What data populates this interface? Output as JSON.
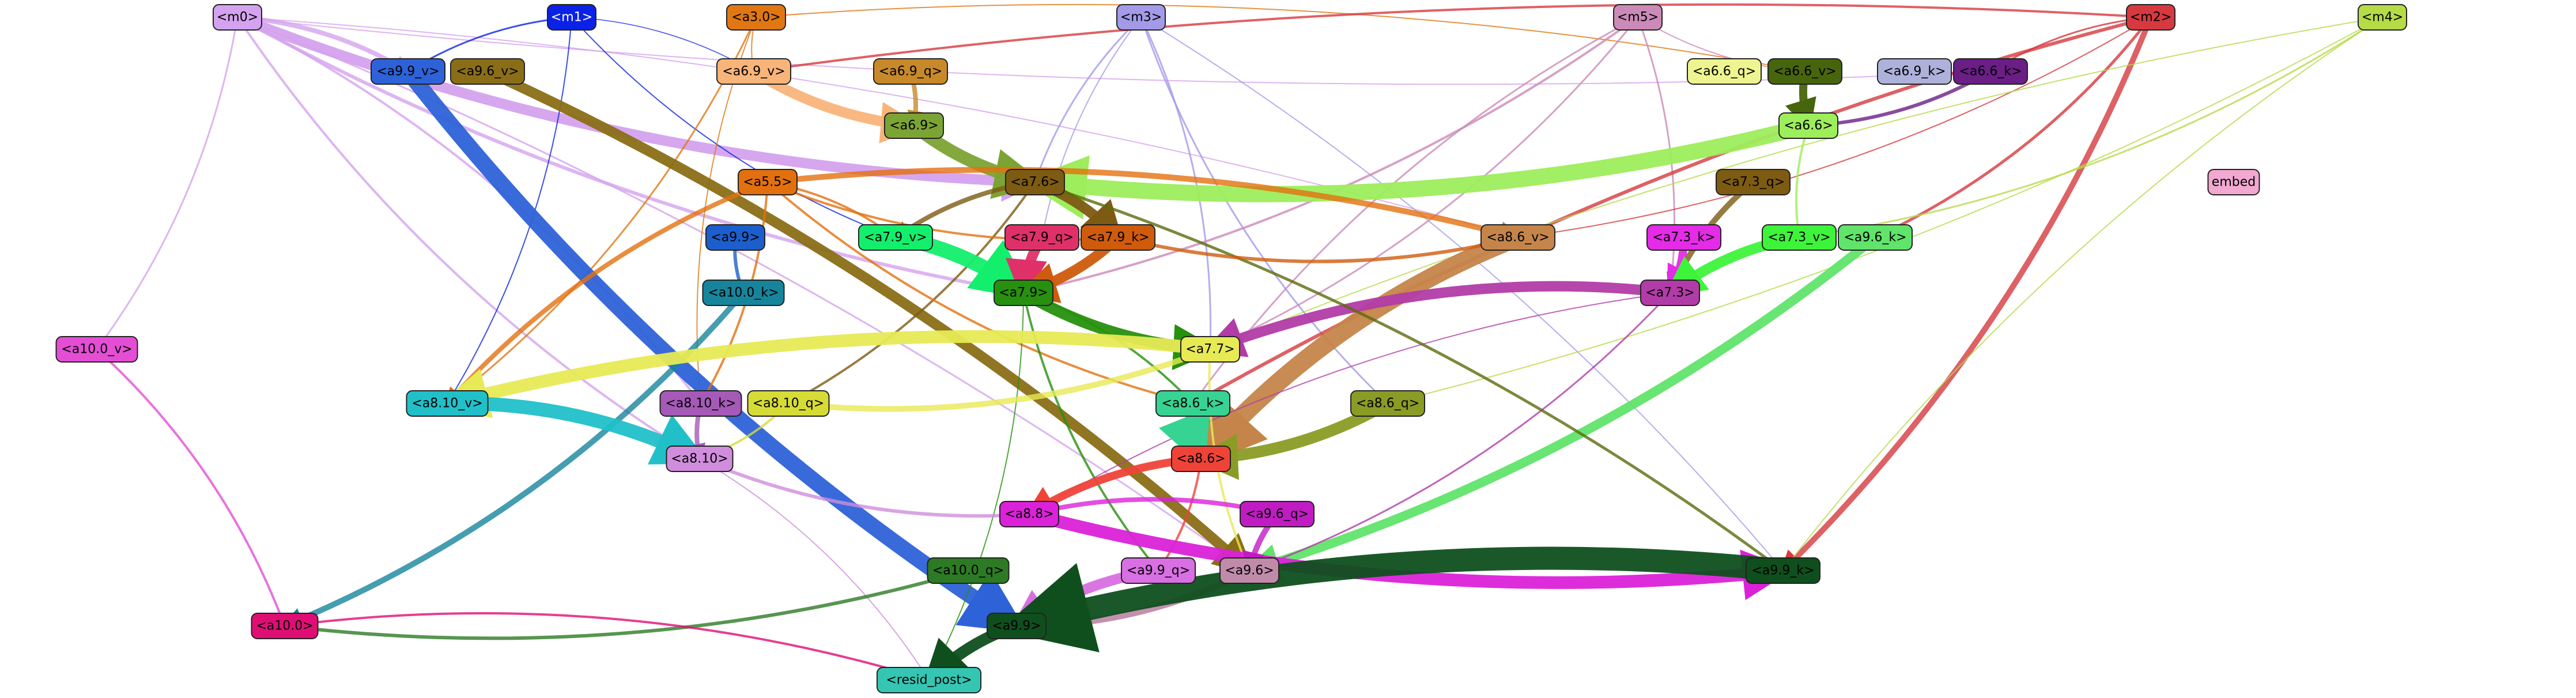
{
  "nodes": [
    {
      "id": "m0",
      "label": "<m0>",
      "fill": "#d4a2ee",
      "text": "#000000"
    },
    {
      "id": "m1",
      "label": "<m1>",
      "fill": "#0b22e6",
      "text": "#ffffff"
    },
    {
      "id": "a3.0",
      "label": "<a3.0>",
      "fill": "#e07712",
      "text": "#000000"
    },
    {
      "id": "m3",
      "label": "<m3>",
      "fill": "#a39ae8",
      "text": "#000000"
    },
    {
      "id": "m5",
      "label": "<m5>",
      "fill": "#cc8ab8",
      "text": "#000000"
    },
    {
      "id": "m2",
      "label": "<m2>",
      "fill": "#d6393f",
      "text": "#000000"
    },
    {
      "id": "m4",
      "label": "<m4>",
      "fill": "#b5db47",
      "text": "#000000"
    },
    {
      "id": "a9.9_v",
      "label": "<a9.9_v>",
      "fill": "#2e62d8",
      "text": "#000000"
    },
    {
      "id": "a9.6_v",
      "label": "<a9.6_v>",
      "fill": "#8a6e17",
      "text": "#000000"
    },
    {
      "id": "a6.9_v",
      "label": "<a6.9_v>",
      "fill": "#f9b47a",
      "text": "#000000"
    },
    {
      "id": "a6.9_q",
      "label": "<a6.9_q>",
      "fill": "#c8892a",
      "text": "#000000"
    },
    {
      "id": "a6.6_q",
      "label": "<a6.6_q>",
      "fill": "#eef590",
      "text": "#000000"
    },
    {
      "id": "a6.6_v",
      "label": "<a6.6_v>",
      "fill": "#47650c",
      "text": "#000000"
    },
    {
      "id": "a6.9_k",
      "label": "<a6.9_k>",
      "fill": "#aeb2da",
      "text": "#000000"
    },
    {
      "id": "a6.6_k",
      "label": "<a6.6_k>",
      "fill": "#6a1e86",
      "text": "#000000"
    },
    {
      "id": "a6.9",
      "label": "<a6.9>",
      "fill": "#7ca434",
      "text": "#000000"
    },
    {
      "id": "a6.6",
      "label": "<a6.6>",
      "fill": "#9ded5c",
      "text": "#000000"
    },
    {
      "id": "a7.6",
      "label": "<a7.6>",
      "fill": "#7d5b12",
      "text": "#000000"
    },
    {
      "id": "a7.3_q",
      "label": "<a7.3_q>",
      "fill": "#7d5b12",
      "text": "#000000"
    },
    {
      "id": "embed",
      "label": "embed",
      "fill": "#f1a8d1",
      "text": "#000000"
    },
    {
      "id": "a5.5",
      "label": "<a5.5>",
      "fill": "#e3700f",
      "text": "#000000"
    },
    {
      "id": "a7.9_v",
      "label": "<a7.9_v>",
      "fill": "#13ef6c",
      "text": "#000000"
    },
    {
      "id": "a7.9_q",
      "label": "<a7.9_q>",
      "fill": "#e0306a",
      "text": "#000000"
    },
    {
      "id": "a7.9_k",
      "label": "<a7.9_k>",
      "fill": "#cf5b0c",
      "text": "#000000"
    },
    {
      "id": "a8.6_v",
      "label": "<a8.6_v>",
      "fill": "#c5854a",
      "text": "#000000"
    },
    {
      "id": "a7.3_k",
      "label": "<a7.3_k>",
      "fill": "#e42be6",
      "text": "#000000"
    },
    {
      "id": "a7.3_v",
      "label": "<a7.3_v>",
      "fill": "#3ef43b",
      "text": "#000000"
    },
    {
      "id": "a9.6_k",
      "label": "<a9.6_k>",
      "fill": "#60e46a",
      "text": "#000000"
    },
    {
      "id": "a9.9",
      "label": "<a9.9>",
      "fill": "#1c5fcc",
      "text": "#000000"
    },
    {
      "id": "a10.0_k",
      "label": "<a10.0_k>",
      "fill": "#16859c",
      "text": "#000000"
    },
    {
      "id": "a7.9",
      "label": "<a7.9>",
      "fill": "#27900e",
      "text": "#000000"
    },
    {
      "id": "a7.3",
      "label": "<a7.3>",
      "fill": "#b23ca7",
      "text": "#000000"
    },
    {
      "id": "a10.0_v",
      "label": "<a10.0_v>",
      "fill": "#e44ed5",
      "text": "#000000"
    },
    {
      "id": "a7.7",
      "label": "<a7.7>",
      "fill": "#e7ea55",
      "text": "#000000"
    },
    {
      "id": "a8.10_v",
      "label": "<a8.10_v>",
      "fill": "#21c0c9",
      "text": "#000000"
    },
    {
      "id": "a8.10_k",
      "label": "<a8.10_k>",
      "fill": "#a65ab8",
      "text": "#000000"
    },
    {
      "id": "a8.10_q",
      "label": "<a8.10_q>",
      "fill": "#d7db36",
      "text": "#000000"
    },
    {
      "id": "a8.6_k",
      "label": "<a8.6_k>",
      "fill": "#37d393",
      "text": "#000000"
    },
    {
      "id": "a8.6_q",
      "label": "<a8.6_q>",
      "fill": "#8a9c25",
      "text": "#000000"
    },
    {
      "id": "a8.6",
      "label": "<a8.6>",
      "fill": "#ef4338",
      "text": "#000000"
    },
    {
      "id": "a8.10",
      "label": "<a8.10>",
      "fill": "#d08ddc",
      "text": "#000000"
    },
    {
      "id": "a8.8",
      "label": "<a8.8>",
      "fill": "#db22d8",
      "text": "#000000"
    },
    {
      "id": "a9.6_q",
      "label": "<a9.6_q>",
      "fill": "#c11cc4",
      "text": "#000000"
    },
    {
      "id": "a10.0_q",
      "label": "<a10.0_q>",
      "fill": "#2d7a24",
      "text": "#000000"
    },
    {
      "id": "a9.9_q",
      "label": "<a9.9_q>",
      "fill": "#d86fe2",
      "text": "#000000"
    },
    {
      "id": "a9.6",
      "label": "<a9.6>",
      "fill": "#c08ba9",
      "text": "#000000"
    },
    {
      "id": "a9.9_k",
      "label": "<a9.9_k>",
      "fill": "#0f4f1d",
      "text": "#000000"
    },
    {
      "id": "a10.0",
      "label": "<a10.0>",
      "fill": "#df0e75",
      "text": "#000000"
    },
    {
      "id": "a9.9b",
      "label": "<a9.9>",
      "fill": "#0f4f1d",
      "text": "#000000"
    },
    {
      "id": "resid_post",
      "label": "<resid_post>",
      "fill": "#35c6b3",
      "text": "#000000"
    }
  ],
  "edges": [
    {
      "from": "m0",
      "to": "a9.9_v",
      "color": "#d4a2ee",
      "weight": 8
    },
    {
      "from": "m0",
      "to": "a7.6",
      "color": "#d4a2ee",
      "weight": 18
    },
    {
      "from": "m0",
      "to": "a8.10_k",
      "color": "#d4a2ee",
      "weight": 4
    },
    {
      "from": "m0",
      "to": "a8.10",
      "color": "#d4a2ee",
      "weight": 4
    },
    {
      "from": "m0",
      "to": "a10.0_v",
      "color": "#d4a2ee",
      "weight": 3
    },
    {
      "from": "m0",
      "to": "a7.9",
      "color": "#d4a2ee",
      "weight": 6
    },
    {
      "from": "m0",
      "to": "a9.6",
      "color": "#d4a2ee",
      "weight": 3
    },
    {
      "from": "m0",
      "to": "a6.6_k",
      "color": "#d4a2ee",
      "weight": 2
    },
    {
      "from": "m0",
      "to": "a8.6_v",
      "color": "#d4a2ee",
      "weight": 2
    },
    {
      "from": "m1",
      "to": "a9.9_v",
      "color": "#0b22e6",
      "weight": 3
    },
    {
      "from": "m1",
      "to": "a8.10_v",
      "color": "#0b22e6",
      "weight": 2
    },
    {
      "from": "m1",
      "to": "a7.9_v",
      "color": "#0b22e6",
      "weight": 2
    },
    {
      "from": "m1",
      "to": "a6.9_v",
      "color": "#0b22e6",
      "weight": 1
    },
    {
      "from": "a3.0",
      "to": "a6.9_v",
      "color": "#e07712",
      "weight": 2
    },
    {
      "from": "a3.0",
      "to": "a8.10_v",
      "color": "#e07712",
      "weight": 3
    },
    {
      "from": "a3.0",
      "to": "a8.10_k",
      "color": "#e07712",
      "weight": 2
    },
    {
      "from": "a3.0",
      "to": "a6.6_v",
      "color": "#e07712",
      "weight": 2
    },
    {
      "from": "m3",
      "to": "a7.6",
      "color": "#a39ae8",
      "weight": 3
    },
    {
      "from": "m3",
      "to": "a7.7",
      "color": "#a39ae8",
      "weight": 3
    },
    {
      "from": "m3",
      "to": "a8.6_q",
      "color": "#a39ae8",
      "weight": 3
    },
    {
      "from": "m3",
      "to": "a9.9_k",
      "color": "#a39ae8",
      "weight": 2
    },
    {
      "from": "m3",
      "to": "a7.9_q",
      "color": "#a39ae8",
      "weight": 2
    },
    {
      "from": "m5",
      "to": "a7.9",
      "color": "#cc8ab8",
      "weight": 4
    },
    {
      "from": "m5",
      "to": "a8.6_k",
      "color": "#cc8ab8",
      "weight": 3
    },
    {
      "from": "m5",
      "to": "a7.3",
      "color": "#cc8ab8",
      "weight": 3
    },
    {
      "from": "m5",
      "to": "a6.6_v",
      "color": "#cc8ab8",
      "weight": 2
    },
    {
      "from": "m5",
      "to": "a7.7",
      "color": "#cc8ab8",
      "weight": 3
    },
    {
      "from": "m2",
      "to": "a6.9_v",
      "color": "#d6393f",
      "weight": 4
    },
    {
      "from": "m2",
      "to": "a9.9_k",
      "color": "#d6393f",
      "weight": 10
    },
    {
      "from": "m2",
      "to": "a8.6_k",
      "color": "#d6393f",
      "weight": 6
    },
    {
      "from": "m2",
      "to": "a9.6_k",
      "color": "#d6393f",
      "weight": 5
    },
    {
      "from": "m2",
      "to": "a6.6_k",
      "color": "#d6393f",
      "weight": 3
    },
    {
      "from": "m2",
      "to": "a8.6_v",
      "color": "#d6393f",
      "weight": 2
    },
    {
      "from": "m4",
      "to": "a9.9_k",
      "color": "#b5db47",
      "weight": 2
    },
    {
      "from": "m4",
      "to": "a7.3_v",
      "color": "#b5db47",
      "weight": 3
    },
    {
      "from": "m4",
      "to": "a7.7",
      "color": "#b5db47",
      "weight": 2
    },
    {
      "from": "m4",
      "to": "a8.6_q",
      "color": "#b5db47",
      "weight": 2
    },
    {
      "from": "a9.9_v",
      "to": "a9.9b",
      "color": "#2e62d8",
      "weight": 28
    },
    {
      "from": "a9.6_v",
      "to": "a9.6",
      "color": "#8a6e17",
      "weight": 18
    },
    {
      "from": "a6.9_v",
      "to": "a6.9",
      "color": "#f9b47a",
      "weight": 18
    },
    {
      "from": "a6.9_q",
      "to": "a6.9",
      "color": "#c8892a",
      "weight": 8
    },
    {
      "from": "a6.6_v",
      "to": "a6.6",
      "color": "#47650c",
      "weight": 14
    },
    {
      "from": "a6.6_k",
      "to": "a6.6",
      "color": "#6a1e86",
      "weight": 6
    },
    {
      "from": "a6.9",
      "to": "a7.6",
      "color": "#7ca434",
      "weight": 22
    },
    {
      "from": "a6.6",
      "to": "a7.6",
      "color": "#9ded5c",
      "weight": 28
    },
    {
      "from": "a6.6",
      "to": "a7.3_v",
      "color": "#9ded5c",
      "weight": 4
    },
    {
      "from": "a7.6",
      "to": "a7.9_k",
      "color": "#7d5b12",
      "weight": 18
    },
    {
      "from": "a7.6",
      "to": "a7.9_v",
      "color": "#7d5b12",
      "weight": 8
    },
    {
      "from": "a7.6",
      "to": "a8.10_q",
      "color": "#7d5b12",
      "weight": 4
    },
    {
      "from": "a7.3_q",
      "to": "a7.3",
      "color": "#7d5b12",
      "weight": 10
    },
    {
      "from": "a5.5",
      "to": "a8.6_v",
      "color": "#e3700f",
      "weight": 10
    },
    {
      "from": "a5.5",
      "to": "a8.10_v",
      "color": "#e3700f",
      "weight": 8
    },
    {
      "from": "a5.5",
      "to": "a7.9_v",
      "color": "#e3700f",
      "weight": 4
    },
    {
      "from": "a5.5",
      "to": "a7.9_k",
      "color": "#e3700f",
      "weight": 4
    },
    {
      "from": "a5.5",
      "to": "a8.10_k",
      "color": "#e3700f",
      "weight": 4
    },
    {
      "from": "a5.5",
      "to": "a8.6_k",
      "color": "#e3700f",
      "weight": 4
    },
    {
      "from": "a7.9_v",
      "to": "a7.9",
      "color": "#13ef6c",
      "weight": 26
    },
    {
      "from": "a7.9_q",
      "to": "a7.9",
      "color": "#e0306a",
      "weight": 18
    },
    {
      "from": "a7.9_k",
      "to": "a7.9",
      "color": "#cf5b0c",
      "weight": 18
    },
    {
      "from": "a8.6_v",
      "to": "a8.6",
      "color": "#c5854a",
      "weight": 32
    },
    {
      "from": "a7.3_k",
      "to": "a7.3",
      "color": "#e42be6",
      "weight": 14
    },
    {
      "from": "a7.3_v",
      "to": "a7.3",
      "color": "#3ef43b",
      "weight": 18
    },
    {
      "from": "a9.6_k",
      "to": "a9.6",
      "color": "#60e46a",
      "weight": 16
    },
    {
      "from": "a9.9",
      "to": "a10.0_k",
      "color": "#1c5fcc",
      "weight": 6
    },
    {
      "from": "a10.0_k",
      "to": "a10.0",
      "color": "#16859c",
      "weight": 10
    },
    {
      "from": "a7.9",
      "to": "a7.7",
      "color": "#27900e",
      "weight": 20
    },
    {
      "from": "a7.9",
      "to": "a8.6_k",
      "color": "#27900e",
      "weight": 4
    },
    {
      "from": "a7.9",
      "to": "a9.9_q",
      "color": "#27900e",
      "weight": 4
    },
    {
      "from": "a7.9",
      "to": "resid_post",
      "color": "#27900e",
      "weight": 2
    },
    {
      "from": "a7.3",
      "to": "a7.7",
      "color": "#b23ca7",
      "weight": 18
    },
    {
      "from": "a7.3",
      "to": "a9.6",
      "color": "#b23ca7",
      "weight": 3
    },
    {
      "from": "a7.3",
      "to": "a8.8",
      "color": "#b23ca7",
      "weight": 2
    },
    {
      "from": "a10.0_v",
      "to": "a10.0",
      "color": "#e44ed5",
      "weight": 4
    },
    {
      "from": "a7.7",
      "to": "a8.10_v",
      "color": "#e7ea55",
      "weight": 22
    },
    {
      "from": "a7.7",
      "to": "a8.10_q",
      "color": "#e7ea55",
      "weight": 10
    },
    {
      "from": "a7.7",
      "to": "a9.6",
      "color": "#e7ea55",
      "weight": 4
    },
    {
      "from": "a8.10_v",
      "to": "a8.10",
      "color": "#21c0c9",
      "weight": 24
    },
    {
      "from": "a8.10_k",
      "to": "a8.10",
      "color": "#a65ab8",
      "weight": 8
    },
    {
      "from": "a8.10_q",
      "to": "a8.10",
      "color": "#d7db36",
      "weight": 4
    },
    {
      "from": "a8.6_k",
      "to": "a8.6",
      "color": "#37d393",
      "weight": 24
    },
    {
      "from": "a8.6_q",
      "to": "a8.6",
      "color": "#8a9c25",
      "weight": 20
    },
    {
      "from": "a8.6",
      "to": "a8.8",
      "color": "#ef4338",
      "weight": 14
    },
    {
      "from": "a8.6",
      "to": "a9.9_q",
      "color": "#ef4338",
      "weight": 4
    },
    {
      "from": "a8.10",
      "to": "a8.8",
      "color": "#d08ddc",
      "weight": 6
    },
    {
      "from": "a8.10",
      "to": "resid_post",
      "color": "#d08ddc",
      "weight": 2
    },
    {
      "from": "a8.8",
      "to": "a9.9_k",
      "color": "#db22d8",
      "weight": 22
    },
    {
      "from": "a8.8",
      "to": "a9.6_q",
      "color": "#db22d8",
      "weight": 8
    },
    {
      "from": "a9.6_q",
      "to": "a9.6",
      "color": "#c11cc4",
      "weight": 10
    },
    {
      "from": "a10.0_q",
      "to": "a10.0",
      "color": "#2d7a24",
      "weight": 6
    },
    {
      "from": "a9.9_q",
      "to": "a9.9b",
      "color": "#d86fe2",
      "weight": 18
    },
    {
      "from": "a9.6",
      "to": "a9.9b",
      "color": "#c08ba9",
      "weight": 12
    },
    {
      "from": "a9.9_k",
      "to": "a9.9b",
      "color": "#0f4f1d",
      "weight": 40
    },
    {
      "from": "a10.0",
      "to": "resid_post",
      "color": "#df0e75",
      "weight": 4
    },
    {
      "from": "a9.9b",
      "to": "resid_post",
      "color": "#0f4f1d",
      "weight": 20
    },
    {
      "from": "a7.6",
      "to": "a9.9_k",
      "color": "#5c6a0d",
      "weight": 5
    },
    {
      "from": "a7.9_k",
      "to": "a8.6_v",
      "color": "#cf5b0c",
      "weight": 6
    }
  ]
}
